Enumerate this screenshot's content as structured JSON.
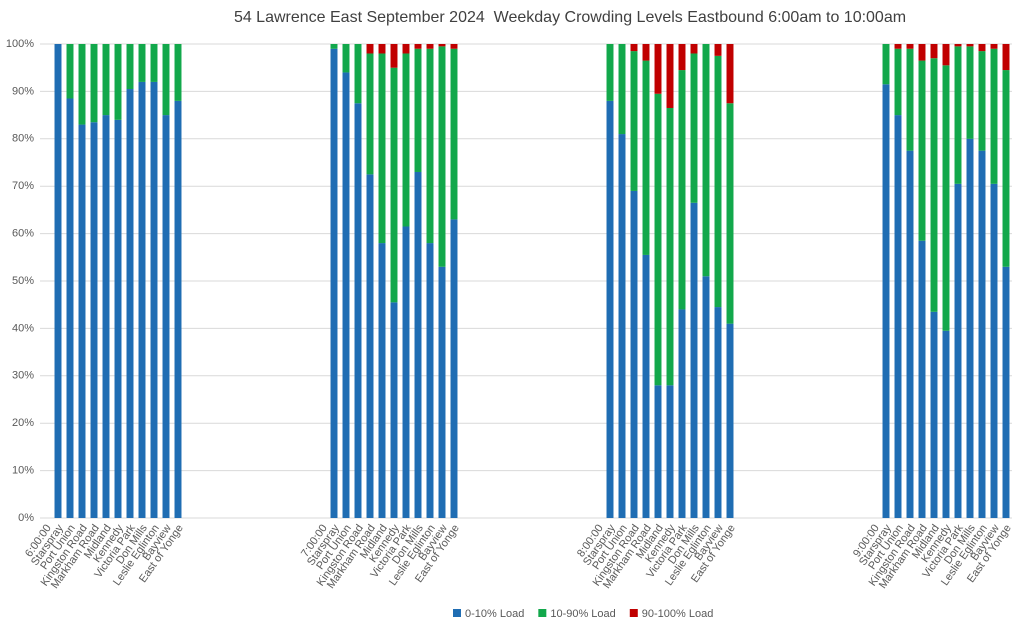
{
  "chart_data": {
    "type": "stacked_bar",
    "title": "54 Lawrence East September 2024  Weekday Crowding Levels Eastbound 6:00am to 10:00am",
    "categories": [
      "6:00:00",
      "Starspray",
      "Port Union",
      "Kingston Road",
      "Markham Road",
      "Midland",
      "Kennedy",
      "Victoria Park",
      "Don Mills",
      "Leslie Eglinton",
      "Bayview",
      "East of Yonge",
      null,
      null,
      null,
      null,
      null,
      null,
      null,
      null,
      null,
      null,
      null,
      "7:00:00",
      "Starspray",
      "Port Union",
      "Kingston Road",
      "Markham Road",
      "Midland",
      "Kennedy",
      "Victoria Park",
      "Don Mills",
      "Leslie Eglinton",
      "Bayview",
      "East of Yonge",
      null,
      null,
      null,
      null,
      null,
      null,
      null,
      null,
      null,
      null,
      null,
      "8:00:00",
      "Starspray",
      "Port Union",
      "Kingston Road",
      "Markham Road",
      "Midland",
      "Kennedy",
      "Victoria Park",
      "Don Mills",
      "Leslie Eglinton",
      "Bayview",
      "East of Yonge",
      null,
      null,
      null,
      null,
      null,
      null,
      null,
      null,
      null,
      null,
      null,
      "9:00:00",
      "Starspray",
      "Port Union",
      "Kingston Road",
      "Markham Road",
      "Midland",
      "Kennedy",
      "Victoria Park",
      "Don Mills",
      "Leslie Eglinton",
      "Bayview",
      "East of Yonge"
    ],
    "series": [
      {
        "name": "0-10% Load",
        "color": "#1f6db3",
        "values": [
          null,
          100,
          88.5,
          83,
          83.5,
          85,
          84,
          90.5,
          92,
          92,
          85,
          88,
          null,
          null,
          null,
          null,
          null,
          null,
          null,
          null,
          null,
          null,
          null,
          null,
          99,
          94,
          87.5,
          72.5,
          58,
          45.5,
          61.5,
          73,
          58,
          53,
          63,
          null,
          null,
          null,
          null,
          null,
          null,
          null,
          null,
          null,
          null,
          null,
          null,
          88,
          81,
          69,
          55.5,
          28,
          28,
          44,
          66.5,
          51,
          44.5,
          41,
          null,
          null,
          null,
          null,
          null,
          null,
          null,
          null,
          null,
          null,
          null,
          null,
          91.5,
          85,
          77.5,
          58.5,
          43.5,
          39.5,
          70.5,
          80,
          77.5,
          70.5,
          53
        ]
      },
      {
        "name": "10-90% Load",
        "color": "#12a84b",
        "values": [
          null,
          0,
          11.5,
          17,
          16.5,
          15,
          16,
          9.5,
          8,
          8,
          15,
          12,
          null,
          null,
          null,
          null,
          null,
          null,
          null,
          null,
          null,
          null,
          null,
          null,
          1,
          6,
          12.5,
          25.5,
          40,
          49.5,
          36.5,
          26,
          41,
          46.5,
          36,
          null,
          null,
          null,
          null,
          null,
          null,
          null,
          null,
          null,
          null,
          null,
          null,
          12,
          19,
          29.5,
          41,
          61.5,
          58.5,
          50.5,
          31.5,
          49,
          53,
          46.5,
          null,
          null,
          null,
          null,
          null,
          null,
          null,
          null,
          null,
          null,
          null,
          null,
          8.5,
          14,
          21.5,
          38,
          53.5,
          56,
          29,
          19.5,
          21,
          28.5,
          41.5
        ]
      },
      {
        "name": "90-100% Load",
        "color": "#c00000",
        "values": [
          null,
          0,
          0,
          0,
          0,
          0,
          0,
          0,
          0,
          0,
          0,
          0,
          null,
          null,
          null,
          null,
          null,
          null,
          null,
          null,
          null,
          null,
          null,
          null,
          0,
          0,
          0,
          2,
          2,
          5,
          2,
          1,
          1,
          0.5,
          1,
          null,
          null,
          null,
          null,
          null,
          null,
          null,
          null,
          null,
          null,
          null,
          null,
          0,
          0,
          1.5,
          3.5,
          10.5,
          13.5,
          5.5,
          2,
          0,
          2.5,
          12.5,
          null,
          null,
          null,
          null,
          null,
          null,
          null,
          null,
          null,
          null,
          null,
          null,
          0,
          1,
          1,
          3.5,
          3,
          4.5,
          0.5,
          0.5,
          1.5,
          1,
          5.5
        ]
      }
    ],
    "ylim": [
      0,
      100
    ],
    "yticks": [
      {
        "value": 0,
        "label": "0%"
      },
      {
        "value": 10,
        "label": "10%"
      },
      {
        "value": 20,
        "label": "20%"
      },
      {
        "value": 30,
        "label": "30%"
      },
      {
        "value": 40,
        "label": "40%"
      },
      {
        "value": 50,
        "label": "50%"
      },
      {
        "value": 60,
        "label": "60%"
      },
      {
        "value": 70,
        "label": "70%"
      },
      {
        "value": 80,
        "label": "80%"
      },
      {
        "value": 90,
        "label": "90%"
      },
      {
        "value": 100,
        "label": "100%"
      }
    ],
    "grid": true,
    "legend": "bottom"
  }
}
